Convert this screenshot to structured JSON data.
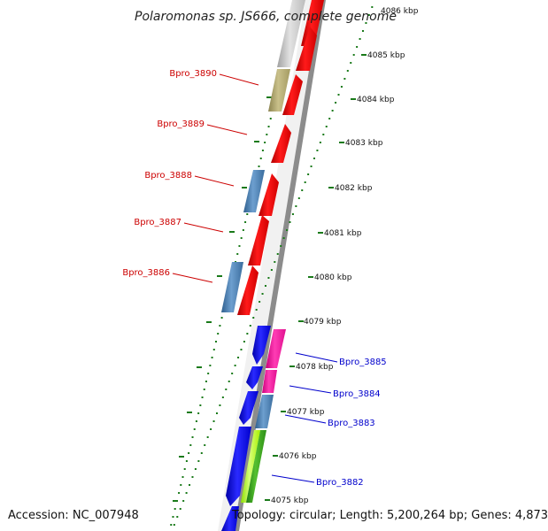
{
  "title": "Polaromonas sp. JS666, complete genome",
  "accession": "Accession: NC_007948",
  "topology": "Topology: circular; Length: 5,200,264 bp; Genes: 4,873",
  "colors": {
    "backbone": "#8c8c8c",
    "ticks": "#1a7a1a",
    "reverse_label": "#cc0000",
    "forward_label": "#0000cc"
  },
  "scale_ticks": [
    "4086 kbp",
    "4085 kbp",
    "4084 kbp",
    "4083 kbp",
    "4082 kbp",
    "4081 kbp",
    "4080 kbp",
    "4079 kbp",
    "4078 kbp",
    "4077 kbp",
    "4076 kbp",
    "4075 kbp"
  ],
  "gene_labels": {
    "reverse": [
      "Bpro_3890",
      "Bpro_3889",
      "Bpro_3888",
      "Bpro_3887",
      "Bpro_3886"
    ],
    "forward": [
      "Bpro_3885",
      "Bpro_3884",
      "Bpro_3883",
      "Bpro_3882"
    ]
  }
}
